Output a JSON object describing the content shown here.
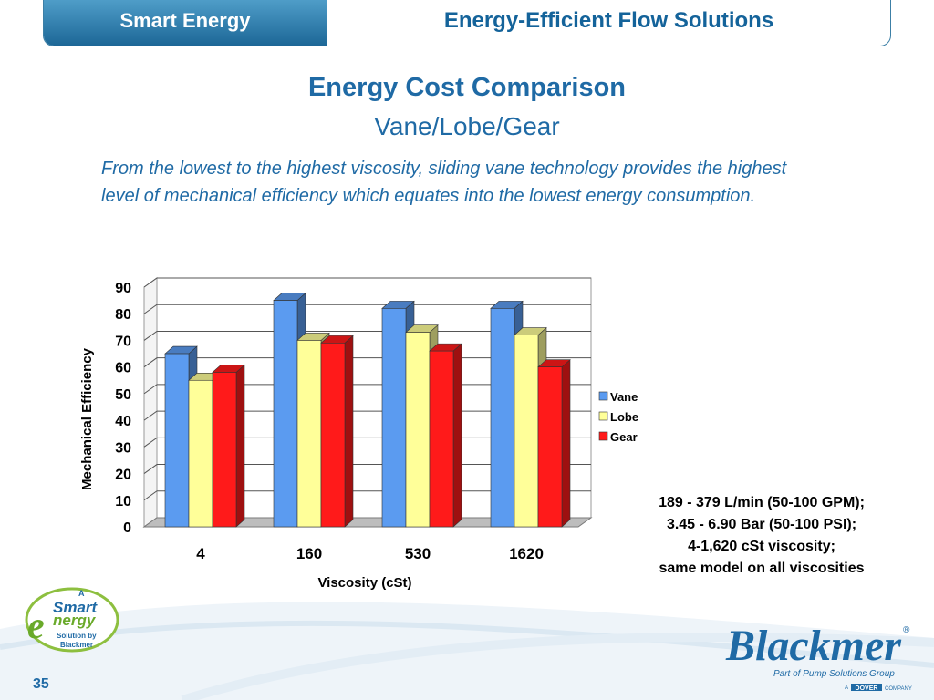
{
  "header": {
    "left": "Smart Energy",
    "right": "Energy-Efficient Flow Solutions"
  },
  "title": "Energy Cost Comparison",
  "subtitle": "Vane/Lobe/Gear",
  "description": "From the lowest to the highest viscosity, sliding vane technology provides the highest level of mechanical efficiency which equates into the lowest energy consumption.",
  "note_lines": [
    "189 - 379 L/min (50-100 GPM);",
    "3.45 - 6.90 Bar (50-100 PSI);",
    "4-1,620 cSt viscosity;",
    "same model on all viscosities"
  ],
  "page_number": "35",
  "smart_logo": {
    "top": "A",
    "word1": "Smart",
    "word2": "nergy",
    "letter_e": "e",
    "line1": "Solution by",
    "line2": "Blackmer"
  },
  "blackmer_logo": {
    "name": "Blackmer",
    "registered": "®",
    "tagline": "Part of Pump Solutions Group",
    "dover_prefix": "A",
    "dover": "DOVER",
    "company": "COMPANY"
  },
  "chart_data": {
    "type": "bar",
    "categories": [
      "4",
      "160",
      "530",
      "1620"
    ],
    "series": [
      {
        "name": "Vane",
        "values": [
          65,
          85,
          82,
          82
        ],
        "color": "#5b9bf0"
      },
      {
        "name": "Lobe",
        "values": [
          55,
          70,
          73,
          72
        ],
        "color": "#ffff99"
      },
      {
        "name": "Gear",
        "values": [
          58,
          69,
          66,
          60
        ],
        "color": "#ff1a1a"
      }
    ],
    "xlabel": "Viscosity (cSt)",
    "ylabel": "Mechanical Efficiency",
    "ylim": [
      0,
      90
    ],
    "yticks": [
      0,
      10,
      20,
      30,
      40,
      50,
      60,
      70,
      80,
      90
    ],
    "grid": true,
    "legend": "right",
    "style": "3d-clustered-column"
  }
}
